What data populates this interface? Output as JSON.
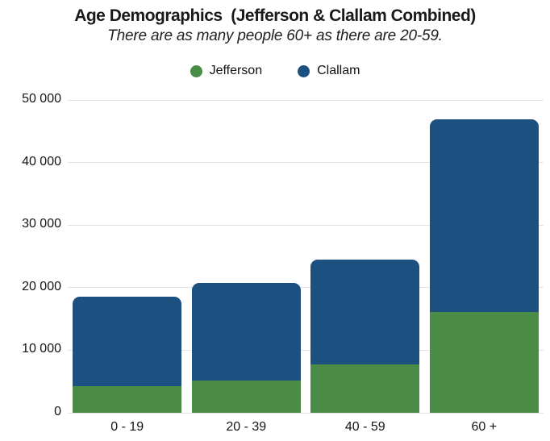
{
  "header": {
    "title": "Age Demographics  (Jefferson & Clallam Combined)",
    "subtitle": "There are as many people 60+ as there are 20-59."
  },
  "legend": {
    "position": "top",
    "items": [
      {
        "label": "Jefferson",
        "color": "#4a8c45"
      },
      {
        "label": "Clallam",
        "color": "#1b5080"
      }
    ]
  },
  "colors": {
    "jefferson_green": "#4a8c45",
    "clallam_blue": "#1b5080",
    "gridline_gray": "#e3e3e3",
    "text_dark": "#141414"
  },
  "chart_data": {
    "type": "bar",
    "stacked": true,
    "title": "Age Demographics  (Jefferson & Clallam Combined)",
    "subtitle": "There are as many people 60+ as there are 20-59.",
    "categories": [
      "0 - 19",
      "20 - 39",
      "40 - 59",
      "60 +"
    ],
    "series": [
      {
        "name": "Jefferson",
        "color": "#4a8c45",
        "values": [
          4200,
          5200,
          7700,
          16100
        ]
      },
      {
        "name": "Clallam",
        "color": "#1b5080",
        "values": [
          14300,
          15600,
          16800,
          30800
        ]
      }
    ],
    "totals": [
      18500,
      20800,
      24500,
      46900
    ],
    "xlabel": "",
    "ylabel": "",
    "ylim": [
      0,
      50000
    ],
    "yticks": [
      0,
      10000,
      20000,
      30000,
      40000,
      50000
    ],
    "ytick_labels": [
      "0",
      "10 000",
      "20 000",
      "30 000",
      "40 000",
      "50 000"
    ],
    "grid": "horizontal",
    "legend_position": "top"
  }
}
